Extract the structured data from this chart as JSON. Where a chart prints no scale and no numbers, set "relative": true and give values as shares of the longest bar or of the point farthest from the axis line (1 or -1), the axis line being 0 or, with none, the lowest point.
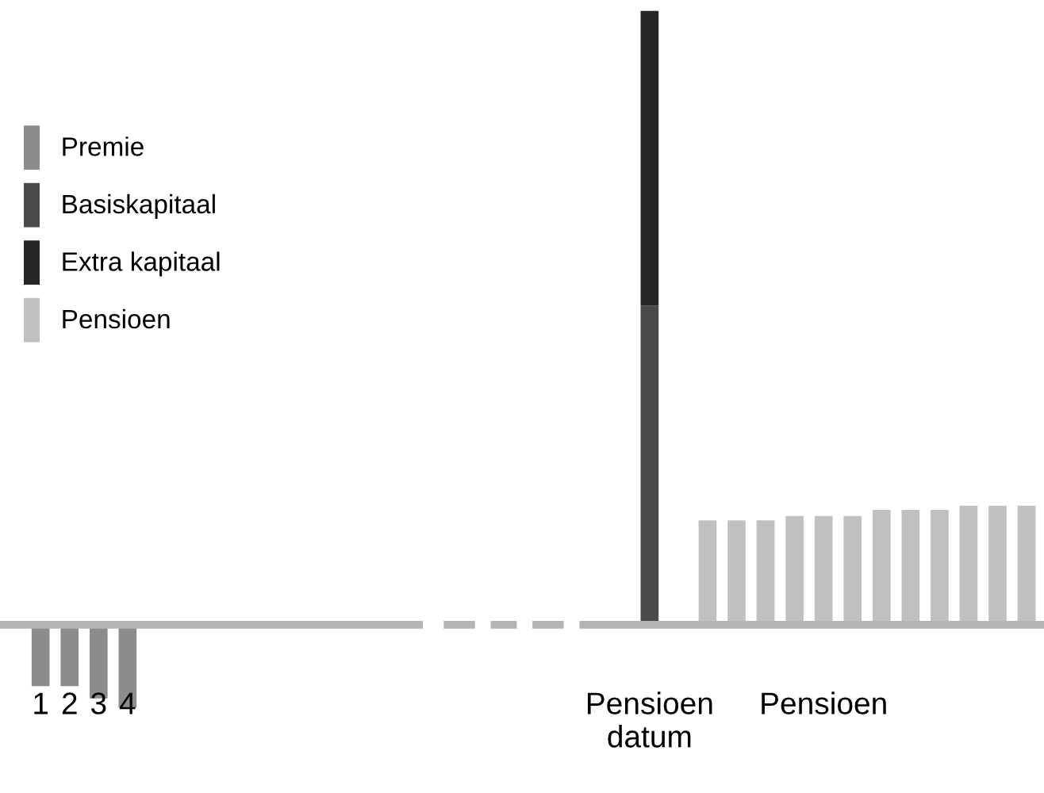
{
  "chart_data": {
    "type": "bar",
    "relative": true,
    "stacked": true,
    "legend": "left",
    "grid": false,
    "tick_labels": "x",
    "categories": [
      "1",
      "2",
      "3",
      "4",
      null,
      null,
      null,
      null,
      null,
      null,
      null,
      null,
      null,
      null,
      null,
      null,
      null,
      null,
      null,
      null,
      null,
      "Pensioen\ndatum",
      null,
      null,
      null,
      null,
      null,
      "Pensioen",
      null,
      null,
      null,
      null,
      null,
      null,
      null
    ],
    "series": [
      {
        "name": "Premie",
        "color": "#8c8c8c",
        "values": [
          -0.1,
          -0.1,
          -0.12,
          -0.135,
          null,
          null,
          null,
          null,
          null,
          null,
          null,
          null,
          null,
          null,
          null,
          null,
          null,
          null,
          null,
          null,
          null,
          null,
          null,
          null,
          null,
          null,
          null,
          null,
          null,
          null,
          null,
          null,
          null,
          null,
          null
        ]
      },
      {
        "name": "Basiskapitaal",
        "color": "#4a4a4a",
        "values": [
          null,
          null,
          null,
          null,
          null,
          null,
          null,
          null,
          null,
          null,
          null,
          null,
          null,
          null,
          null,
          null,
          null,
          null,
          null,
          null,
          null,
          0.52,
          null,
          null,
          null,
          null,
          null,
          null,
          null,
          null,
          null,
          null,
          null,
          null,
          null
        ]
      },
      {
        "name": "Extra kapitaal",
        "color": "#262626",
        "values": [
          null,
          null,
          null,
          null,
          null,
          null,
          null,
          null,
          null,
          null,
          null,
          null,
          null,
          null,
          null,
          null,
          null,
          null,
          null,
          null,
          null,
          0.48,
          null,
          null,
          null,
          null,
          null,
          null,
          null,
          null,
          null,
          null,
          null,
          null,
          null
        ]
      },
      {
        "name": "Pensioen",
        "color": "#c0c0c0",
        "values": [
          null,
          null,
          null,
          null,
          null,
          null,
          null,
          null,
          null,
          null,
          null,
          null,
          null,
          null,
          null,
          null,
          null,
          null,
          null,
          null,
          null,
          null,
          null,
          0.17,
          0.17,
          0.17,
          0.177,
          0.177,
          0.177,
          0.187,
          0.187,
          0.187,
          0.194,
          0.194,
          0.194
        ]
      }
    ]
  }
}
